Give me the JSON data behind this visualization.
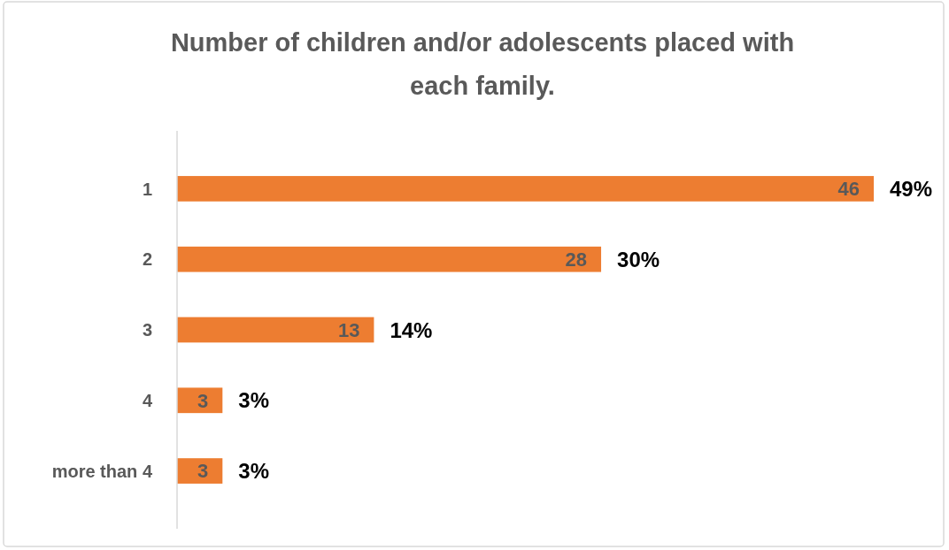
{
  "chart_data": {
    "type": "bar",
    "orientation": "horizontal",
    "title": "Number of children and/or adolescents placed with each family.",
    "categories": [
      "1",
      "2",
      "3",
      "4",
      "more than 4"
    ],
    "values": [
      46,
      28,
      13,
      3,
      3
    ],
    "color": "#ed7d31",
    "data_labels": true,
    "annotations": [
      {
        "text": "49%",
        "x": 46,
        "y": "1"
      },
      {
        "text": "30%",
        "x": 28,
        "y": "2"
      },
      {
        "text": "14%",
        "x": 13,
        "y": "3"
      },
      {
        "text": "3%",
        "x": 3,
        "y": "4"
      },
      {
        "text": "3%",
        "x": 3,
        "y": "more than 4"
      }
    ]
  }
}
